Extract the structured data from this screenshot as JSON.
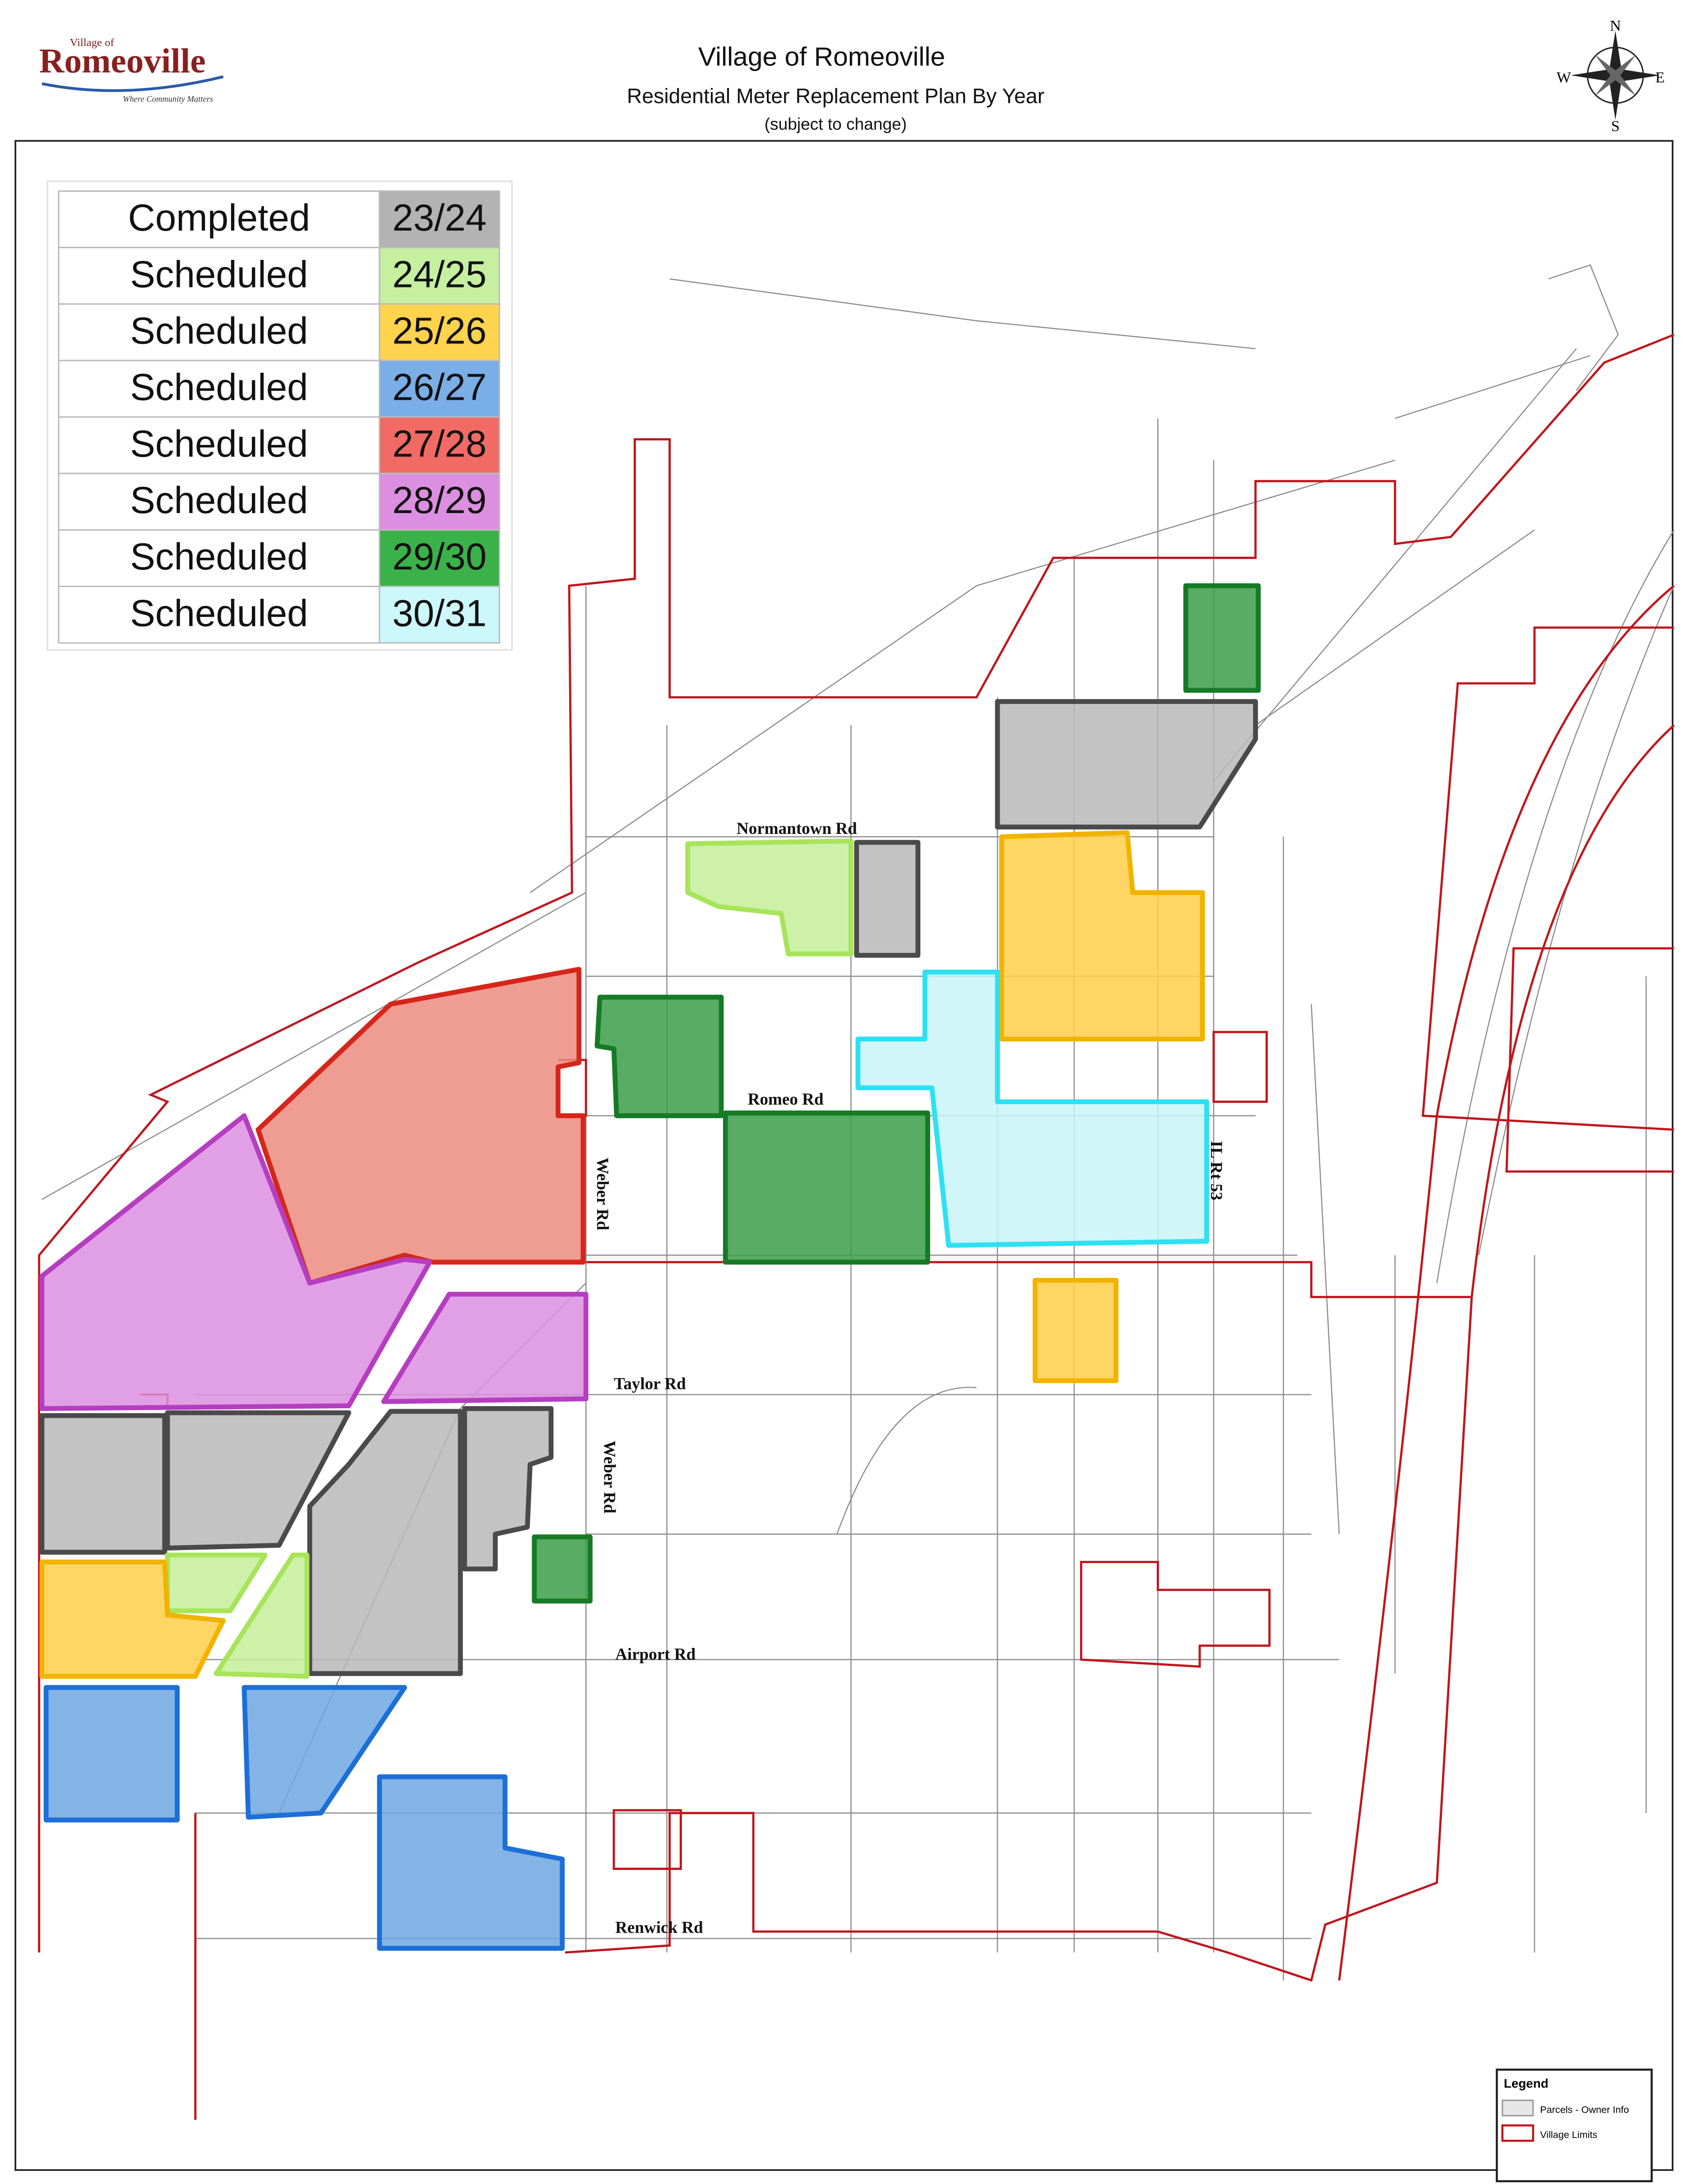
{
  "header": {
    "title": "Village of Romeoville",
    "subtitle": "Residential Meter Replacement Plan By Year",
    "note": "(subject to change)"
  },
  "logo": {
    "top": "Village of",
    "name": "Romeoville",
    "tagline": "Where Community Matters"
  },
  "compass": {
    "north": "N",
    "south": "S",
    "east": "E",
    "west": "W"
  },
  "schedule": {
    "rows": [
      {
        "status": "Completed",
        "year": "23/24",
        "color": "#b3b3b3"
      },
      {
        "status": "Scheduled",
        "year": "24/25",
        "color": "#c6efa0"
      },
      {
        "status": "Scheduled",
        "year": "25/26",
        "color": "#ffd34d"
      },
      {
        "status": "Scheduled",
        "year": "26/27",
        "color": "#7aaee6"
      },
      {
        "status": "Scheduled",
        "year": "27/28",
        "color": "#f16a64"
      },
      {
        "status": "Scheduled",
        "year": "28/29",
        "color": "#dc8fe0"
      },
      {
        "status": "Scheduled",
        "year": "29/30",
        "color": "#3bb14a"
      },
      {
        "status": "Scheduled",
        "year": "30/31",
        "color": "#ccf7fb"
      }
    ]
  },
  "roads": [
    "Normantown Rd",
    "Romeo Rd",
    "Weber Rd",
    "IL Rt 53",
    "Taylor Rd",
    "Weber Rd",
    "Airport Rd",
    "Renwick Rd"
  ],
  "legend": {
    "title": "Legend",
    "items": [
      "Parcels - Owner Info",
      "Village Limits"
    ]
  }
}
